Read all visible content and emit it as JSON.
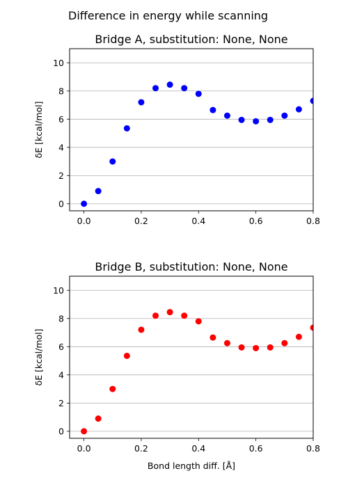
{
  "figure": {
    "suptitle": "Difference in energy while scanning"
  },
  "colors": {
    "grid": "#b0b0b0",
    "axes": "#000000"
  },
  "chart_data": [
    {
      "type": "scatter",
      "title": "Bridge A, substitution: None, None",
      "xlabel": "",
      "ylabel": "δE [kcal/mol]",
      "xlim": [
        -0.05,
        0.8
      ],
      "ylim": [
        -0.5,
        11
      ],
      "xticks": [
        0.0,
        0.2,
        0.4,
        0.6,
        0.8
      ],
      "xtick_labels": [
        "0.0",
        "0.2",
        "0.4",
        "0.6",
        "0.8"
      ],
      "yticks": [
        0,
        2,
        4,
        6,
        8,
        10
      ],
      "ytick_labels": [
        "0",
        "2",
        "4",
        "6",
        "8",
        "10"
      ],
      "grid": "horizontal",
      "color": "#0000ff",
      "x": [
        0.0,
        0.05,
        0.1,
        0.15,
        0.2,
        0.25,
        0.3,
        0.35,
        0.4,
        0.45,
        0.5,
        0.55,
        0.6,
        0.65,
        0.7,
        0.75,
        0.8
      ],
      "y": [
        0.0,
        0.9,
        3.0,
        5.35,
        7.2,
        8.2,
        8.45,
        8.2,
        7.8,
        6.65,
        6.25,
        5.95,
        5.85,
        5.95,
        6.25,
        6.7,
        7.3
      ]
    },
    {
      "type": "scatter",
      "title": "Bridge B, substitution: None, None",
      "xlabel": "Bond length diff. [Å]",
      "ylabel": "δE [kcal/mol]",
      "xlim": [
        -0.05,
        0.8
      ],
      "ylim": [
        -0.5,
        11
      ],
      "xticks": [
        0.0,
        0.2,
        0.4,
        0.6,
        0.8
      ],
      "xtick_labels": [
        "0.0",
        "0.2",
        "0.4",
        "0.6",
        "0.8"
      ],
      "yticks": [
        0,
        2,
        4,
        6,
        8,
        10
      ],
      "ytick_labels": [
        "0",
        "2",
        "4",
        "6",
        "8",
        "10"
      ],
      "grid": "horizontal",
      "color": "#ff0000",
      "x": [
        0.0,
        0.05,
        0.1,
        0.15,
        0.2,
        0.25,
        0.3,
        0.35,
        0.4,
        0.45,
        0.5,
        0.55,
        0.6,
        0.65,
        0.7,
        0.75,
        0.8
      ],
      "y": [
        0.0,
        0.9,
        3.0,
        5.35,
        7.2,
        8.2,
        8.45,
        8.2,
        7.8,
        6.65,
        6.25,
        5.95,
        5.9,
        5.95,
        6.25,
        6.7,
        7.35
      ]
    }
  ]
}
